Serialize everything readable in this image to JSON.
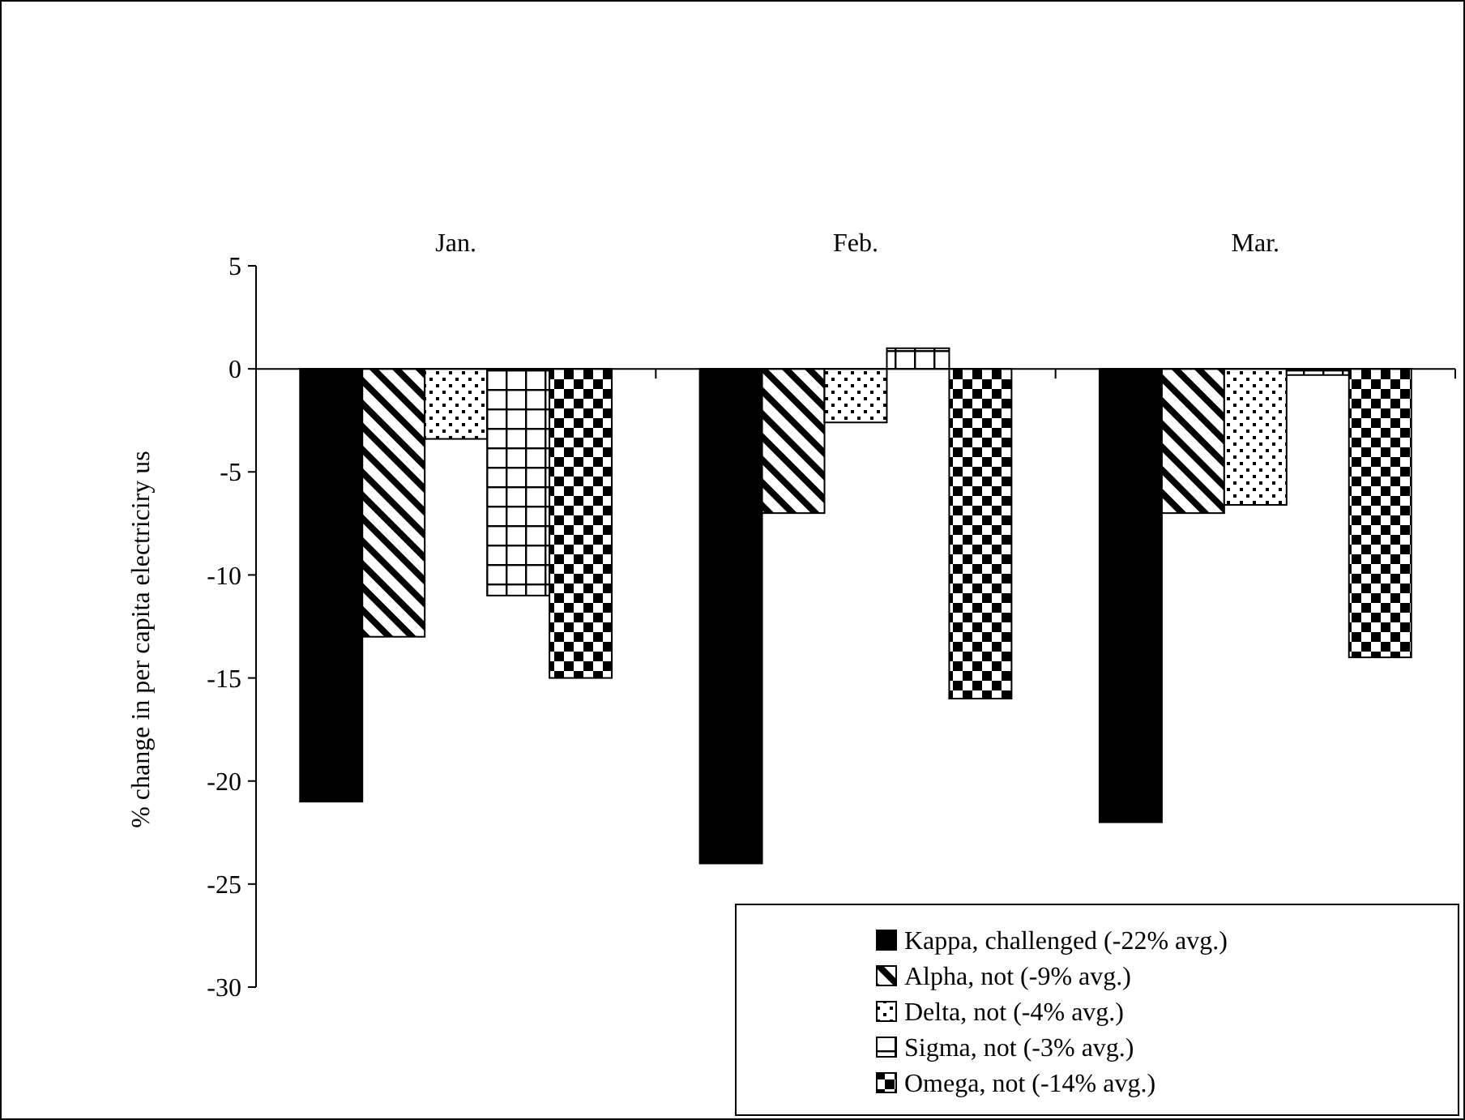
{
  "chart_data": {
    "type": "bar",
    "ylabel": "% change in per capita electriciry us",
    "categories": [
      "Jan.",
      "Feb.",
      "Mar."
    ],
    "ylim": [
      -30,
      5
    ],
    "yticks": [
      -30,
      -25,
      -20,
      -15,
      -10,
      -5,
      0,
      5
    ],
    "legend": "bottom right",
    "series": [
      {
        "name": "Kappa, challenged (-22% avg.)",
        "color": "#000000",
        "values": [
          -21,
          -24,
          -22
        ]
      },
      {
        "name": "Alpha, not (-9% avg.)",
        "color": "#000000",
        "values": [
          -13,
          -7,
          -7
        ]
      },
      {
        "name": "Delta, not (-4% avg.)",
        "color": "#000000",
        "values": [
          -3.4,
          -2.6,
          -6.6
        ]
      },
      {
        "name": "Sigma, not (-3% avg.)",
        "color": "#000000",
        "values": [
          -11,
          1,
          -0.3
        ]
      },
      {
        "name": "Omega, not (-14% avg.)",
        "color": "#000000",
        "values": [
          -15,
          -16,
          -14
        ]
      }
    ]
  }
}
